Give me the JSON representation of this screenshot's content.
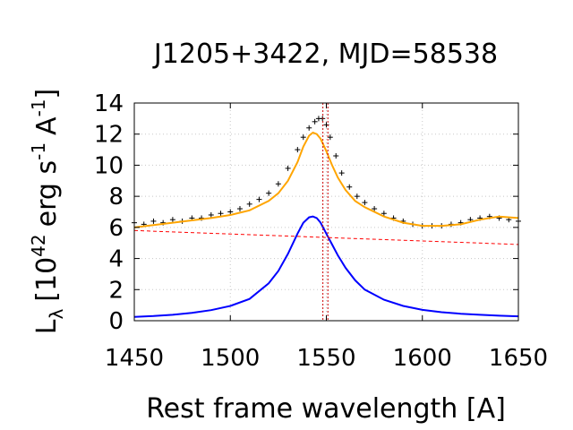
{
  "chart_data": {
    "type": "line",
    "title": "J1205+3422, MJD=58538",
    "xlabel": "Rest frame wavelength [A]",
    "ylabel": {
      "base": "L",
      "sub": "λ",
      "pre": "[10",
      "exp1": "42",
      "mid": "erg s",
      "exp2": "-1",
      "mid2": "A",
      "exp3": "-1",
      "post": "]"
    },
    "xlim": [
      1450,
      1650
    ],
    "ylim": [
      0,
      14
    ],
    "xticks": [
      1450,
      1500,
      1550,
      1600,
      1650
    ],
    "yticks": [
      0,
      2,
      4,
      6,
      8,
      10,
      12,
      14
    ],
    "grid": true,
    "legend": "none",
    "vlines": [
      1548.2,
      1550.8
    ],
    "series": [
      {
        "kind": "points",
        "color": "#000000",
        "x": [
          1450,
          1455,
          1460,
          1465,
          1470,
          1475,
          1480,
          1485,
          1490,
          1495,
          1500,
          1505,
          1510,
          1515,
          1520,
          1525,
          1530,
          1535,
          1538,
          1541,
          1544,
          1546,
          1548,
          1550,
          1552,
          1555,
          1558,
          1562,
          1566,
          1570,
          1575,
          1580,
          1585,
          1590,
          1595,
          1600,
          1605,
          1610,
          1615,
          1620,
          1625,
          1630,
          1635,
          1640,
          1645,
          1650
        ],
        "y": [
          6.3,
          6.2,
          6.4,
          6.3,
          6.5,
          6.4,
          6.6,
          6.6,
          6.8,
          6.9,
          7.0,
          7.2,
          7.5,
          7.8,
          8.2,
          8.8,
          9.8,
          11.0,
          11.8,
          12.4,
          12.8,
          13.0,
          13.0,
          12.6,
          11.8,
          10.6,
          9.5,
          8.6,
          8.0,
          7.6,
          7.2,
          6.9,
          6.6,
          6.4,
          6.2,
          6.1,
          6.1,
          6.1,
          6.2,
          6.3,
          6.5,
          6.6,
          6.7,
          6.6,
          6.5,
          6.4
        ]
      },
      {
        "kind": "line",
        "name": "",
        "color": "#ffa500",
        "x": [
          1450,
          1460,
          1470,
          1480,
          1490,
          1500,
          1510,
          1520,
          1525,
          1530,
          1535,
          1538,
          1541,
          1543,
          1545,
          1547,
          1550,
          1553,
          1556,
          1560,
          1565,
          1570,
          1580,
          1590,
          1600,
          1610,
          1620,
          1630,
          1640,
          1650
        ],
        "y": [
          6.0,
          6.15,
          6.3,
          6.45,
          6.6,
          6.8,
          7.1,
          7.7,
          8.2,
          9.0,
          10.2,
          11.2,
          11.9,
          12.1,
          12.0,
          11.7,
          10.9,
          10.0,
          9.2,
          8.4,
          7.7,
          7.3,
          6.7,
          6.3,
          6.1,
          6.1,
          6.2,
          6.5,
          6.7,
          6.6
        ]
      },
      {
        "kind": "line",
        "name": "",
        "color": "#0000ff",
        "x": [
          1450,
          1460,
          1470,
          1480,
          1490,
          1500,
          1510,
          1520,
          1525,
          1530,
          1535,
          1538,
          1541,
          1543,
          1545,
          1547,
          1550,
          1553,
          1556,
          1560,
          1565,
          1570,
          1580,
          1590,
          1600,
          1610,
          1620,
          1630,
          1640,
          1650
        ],
        "y": [
          0.25,
          0.3,
          0.38,
          0.5,
          0.68,
          0.95,
          1.4,
          2.4,
          3.2,
          4.3,
          5.6,
          6.3,
          6.65,
          6.7,
          6.6,
          6.3,
          5.6,
          4.9,
          4.2,
          3.4,
          2.6,
          2.0,
          1.35,
          0.95,
          0.7,
          0.55,
          0.45,
          0.38,
          0.32,
          0.28
        ]
      },
      {
        "kind": "dashed",
        "name": "",
        "color": "#ff0000",
        "x": [
          1450,
          1650
        ],
        "y": [
          5.8,
          4.9
        ]
      }
    ]
  }
}
